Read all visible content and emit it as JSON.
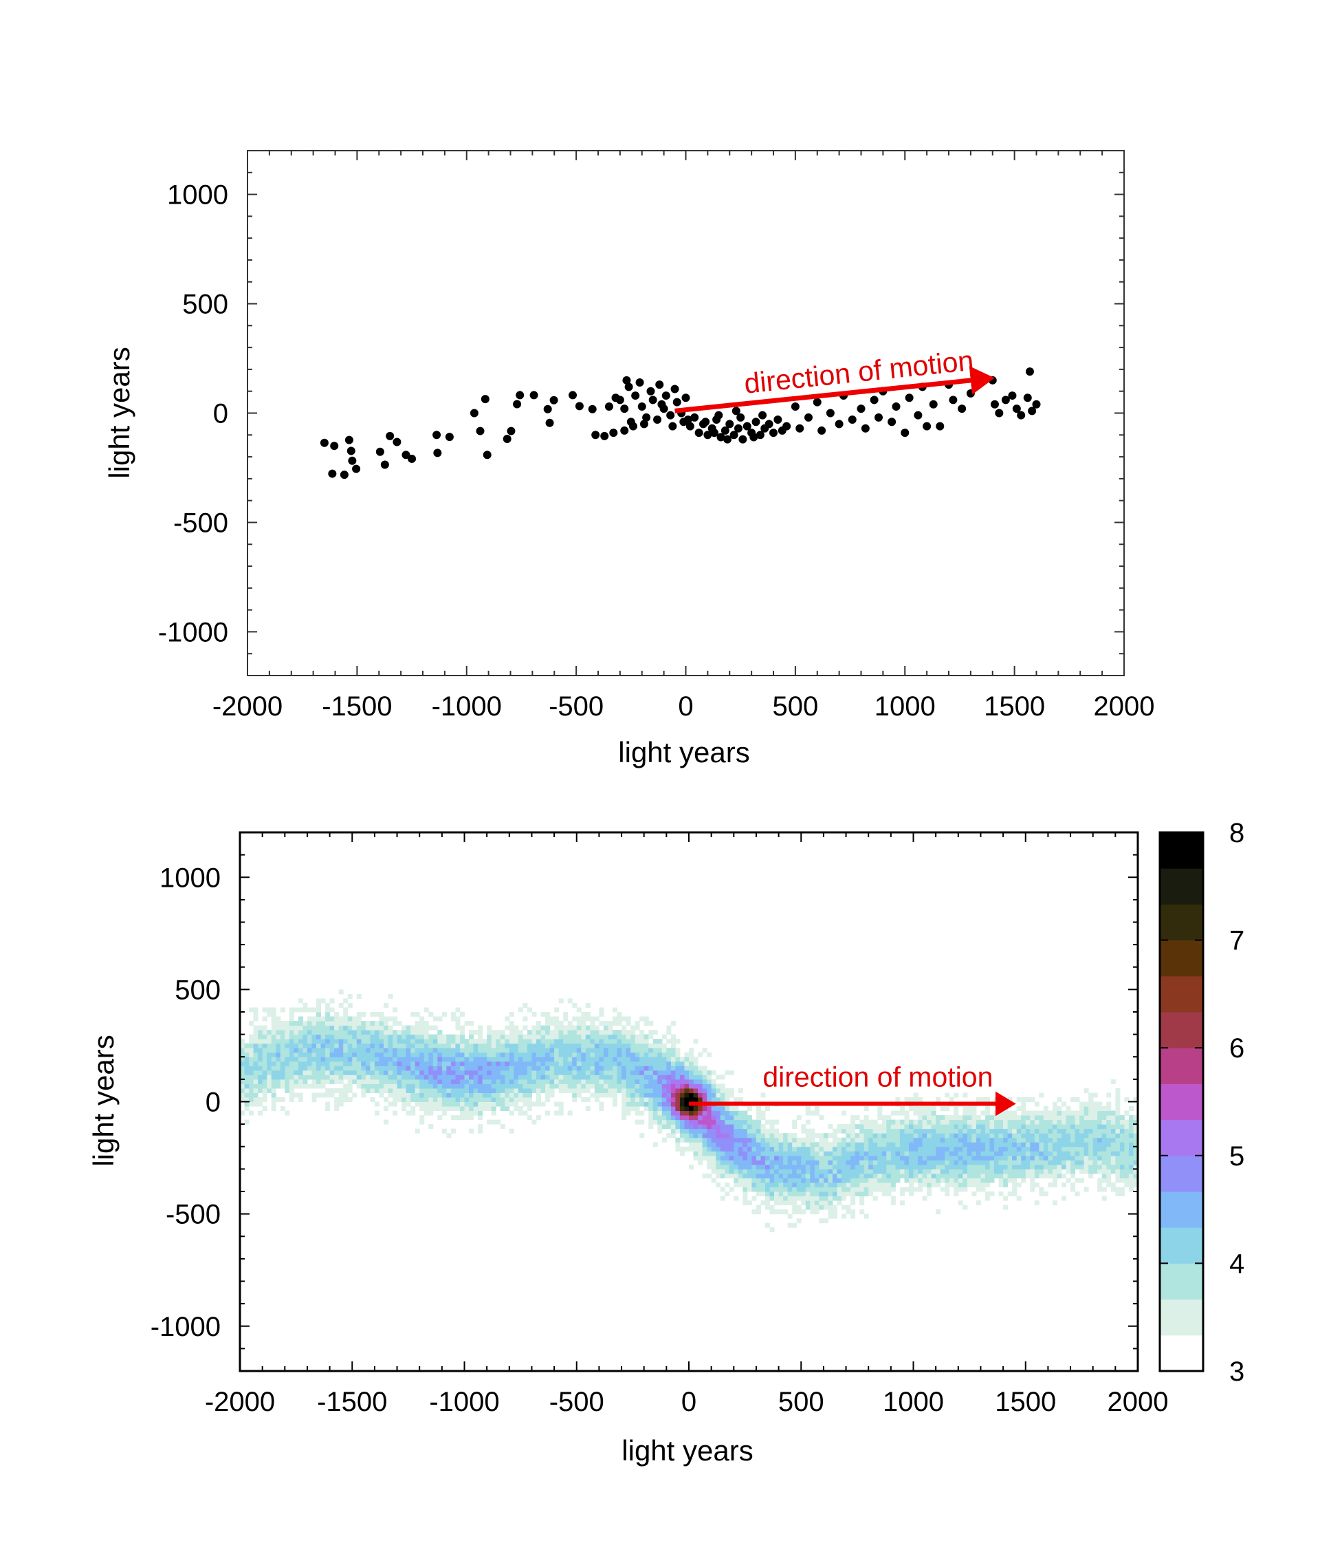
{
  "chart_data": [
    {
      "type": "scatter",
      "xlabel": "light years",
      "ylabel": "light years",
      "xlim": [
        -2000,
        2000
      ],
      "ylim": [
        -1200,
        1200
      ],
      "xticks": [
        "-2000",
        "-1500",
        "-1000",
        "-500",
        "0",
        "500",
        "1000",
        "1500",
        "2000"
      ],
      "yticks": [
        "-1000",
        "-500",
        "0",
        "500",
        "1000"
      ],
      "marker_color": "#000000",
      "annotation": {
        "text": "direction of motion",
        "color": "#ee0000",
        "arrow_from": [
          -50,
          10
        ],
        "arrow_to": [
          1450,
          165
        ]
      },
      "points": [
        [
          -1649,
          -136
        ],
        [
          -1604,
          -150
        ],
        [
          -1613,
          -277
        ],
        [
          -1558,
          -282
        ],
        [
          -1536,
          -123
        ],
        [
          -1527,
          -173
        ],
        [
          -1522,
          -218
        ],
        [
          -1504,
          -255
        ],
        [
          -1395,
          -177
        ],
        [
          -1373,
          -236
        ],
        [
          -1350,
          -105
        ],
        [
          -1318,
          -132
        ],
        [
          -1277,
          -191
        ],
        [
          -1250,
          -209
        ],
        [
          -1137,
          -100
        ],
        [
          -1133,
          -182
        ],
        [
          -1078,
          -109
        ],
        [
          -965,
          0
        ],
        [
          -938,
          -82
        ],
        [
          -915,
          64
        ],
        [
          -906,
          -191
        ],
        [
          -815,
          -118
        ],
        [
          -797,
          -82
        ],
        [
          -770,
          41
        ],
        [
          -757,
          82
        ],
        [
          -693,
          82
        ],
        [
          -630,
          18
        ],
        [
          -621,
          -45
        ],
        [
          -602,
          59
        ],
        [
          -516,
          82
        ],
        [
          -485,
          32
        ],
        [
          -426,
          18
        ],
        [
          -412,
          -100
        ],
        [
          -371,
          -105
        ],
        [
          -300,
          60
        ],
        [
          -280,
          20
        ],
        [
          -260,
          120
        ],
        [
          -250,
          -40
        ],
        [
          -230,
          80
        ],
        [
          -210,
          140
        ],
        [
          -200,
          30
        ],
        [
          -180,
          -20
        ],
        [
          -160,
          100
        ],
        [
          -150,
          60
        ],
        [
          -130,
          -30
        ],
        [
          -120,
          130
        ],
        [
          -100,
          20
        ],
        [
          -90,
          80
        ],
        [
          -70,
          -10
        ],
        [
          -50,
          110
        ],
        [
          -40,
          50
        ],
        [
          -20,
          0
        ],
        [
          -10,
          -40
        ],
        [
          0,
          70
        ],
        [
          10,
          -30
        ],
        [
          -240,
          -60
        ],
        [
          -280,
          -80
        ],
        [
          -330,
          -90
        ],
        [
          -350,
          30
        ],
        [
          -320,
          70
        ],
        [
          -190,
          -50
        ],
        [
          -60,
          -60
        ],
        [
          -110,
          40
        ],
        [
          -270,
          150
        ],
        [
          20,
          -60
        ],
        [
          40,
          -20
        ],
        [
          60,
          -90
        ],
        [
          80,
          -50
        ],
        [
          100,
          -100
        ],
        [
          120,
          -70
        ],
        [
          140,
          -30
        ],
        [
          160,
          -110
        ],
        [
          180,
          -80
        ],
        [
          200,
          -50
        ],
        [
          220,
          -100
        ],
        [
          240,
          -70
        ],
        [
          260,
          -120
        ],
        [
          280,
          -60
        ],
        [
          300,
          -90
        ],
        [
          320,
          -40
        ],
        [
          340,
          -100
        ],
        [
          360,
          -70
        ],
        [
          380,
          -50
        ],
        [
          400,
          -90
        ],
        [
          420,
          -30
        ],
        [
          440,
          -80
        ],
        [
          150,
          -10
        ],
        [
          250,
          -20
        ],
        [
          350,
          -10
        ],
        [
          190,
          -120
        ],
        [
          90,
          -40
        ],
        [
          310,
          -110
        ],
        [
          230,
          10
        ],
        [
          130,
          -90
        ],
        [
          460,
          -60
        ],
        [
          500,
          30
        ],
        [
          520,
          -70
        ],
        [
          560,
          -20
        ],
        [
          600,
          50
        ],
        [
          620,
          -80
        ],
        [
          660,
          0
        ],
        [
          700,
          -50
        ],
        [
          720,
          80
        ],
        [
          760,
          -30
        ],
        [
          800,
          20
        ],
        [
          820,
          -70
        ],
        [
          860,
          60
        ],
        [
          880,
          -20
        ],
        [
          900,
          100
        ],
        [
          940,
          -40
        ],
        [
          960,
          30
        ],
        [
          1000,
          -90
        ],
        [
          1020,
          70
        ],
        [
          1060,
          -10
        ],
        [
          1080,
          120
        ],
        [
          1100,
          -60
        ],
        [
          1130,
          40
        ],
        [
          1160,
          -60
        ],
        [
          1200,
          130
        ],
        [
          1220,
          60
        ],
        [
          1260,
          20
        ],
        [
          1300,
          90
        ],
        [
          1320,
          150
        ],
        [
          1400,
          150
        ],
        [
          1410,
          40
        ],
        [
          1430,
          0
        ],
        [
          1460,
          60
        ],
        [
          1490,
          80
        ],
        [
          1510,
          20
        ],
        [
          1530,
          -10
        ],
        [
          1560,
          70
        ],
        [
          1570,
          190
        ],
        [
          1580,
          10
        ],
        [
          1600,
          40
        ]
      ]
    },
    {
      "type": "heatmap",
      "xlabel": "light years",
      "ylabel": "light years",
      "xlim": [
        -2000,
        2000
      ],
      "ylim": [
        -1200,
        1200
      ],
      "xticks": [
        "-2000",
        "-1500",
        "-1000",
        "-500",
        "0",
        "500",
        "1000",
        "1500",
        "2000"
      ],
      "yticks": [
        "-1000",
        "-500",
        "0",
        "500",
        "1000"
      ],
      "colorbar": {
        "range": [
          3,
          8
        ],
        "ticks": [
          "3",
          "4",
          "5",
          "6",
          "7",
          "8"
        ],
        "colors": [
          "#ffffff",
          "#dcf0e8",
          "#b0e4de",
          "#8dd4e8",
          "#80b8f8",
          "#9090f8",
          "#a878f0",
          "#bc58cc",
          "#b84088",
          "#a03a48",
          "#8a3820",
          "#5a3408",
          "#322c0c",
          "#1a1c10",
          "#000000"
        ]
      },
      "ridge": [
        {
          "x": -2000,
          "y": 130,
          "level": 4.0
        },
        {
          "x": -1700,
          "y": 240,
          "level": 4.2
        },
        {
          "x": -1400,
          "y": 210,
          "level": 4.3
        },
        {
          "x": -1100,
          "y": 130,
          "level": 4.6
        },
        {
          "x": -900,
          "y": 120,
          "level": 4.6
        },
        {
          "x": -600,
          "y": 190,
          "level": 4.2
        },
        {
          "x": -350,
          "y": 190,
          "level": 4.3
        },
        {
          "x": -150,
          "y": 110,
          "level": 4.5
        },
        {
          "x": 0,
          "y": 0,
          "level": 5.0
        },
        {
          "x": 150,
          "y": -150,
          "level": 4.9
        },
        {
          "x": 350,
          "y": -280,
          "level": 4.5
        },
        {
          "x": 600,
          "y": -320,
          "level": 4.2
        },
        {
          "x": 900,
          "y": -220,
          "level": 4.2
        },
        {
          "x": 1200,
          "y": -210,
          "level": 4.4
        },
        {
          "x": 1500,
          "y": -210,
          "level": 4.2
        },
        {
          "x": 1800,
          "y": -170,
          "level": 4.1
        },
        {
          "x": 2000,
          "y": -210,
          "level": 4.0
        }
      ],
      "peak": {
        "x": 0,
        "y": 0,
        "level": 8
      },
      "annotation": {
        "text": "direction of motion",
        "color": "#ee0000",
        "arrow_from": [
          0,
          0
        ],
        "arrow_to": [
          1500,
          0
        ]
      }
    }
  ]
}
